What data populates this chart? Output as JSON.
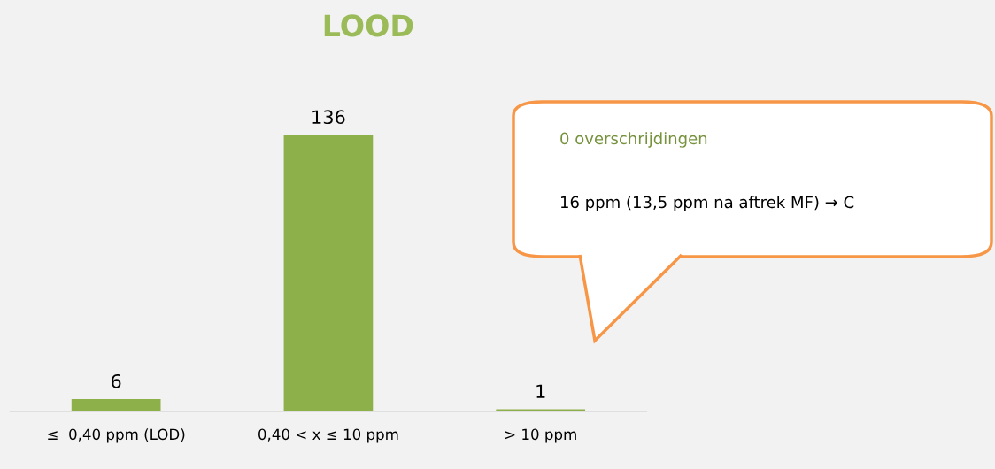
{
  "chart_data": {
    "type": "bar",
    "title": "LOOD",
    "categories": [
      "≤  0,40 ppm (LOD)",
      "0,40 < x ≤ 10 ppm",
      "> 10 ppm"
    ],
    "values": [
      6,
      136,
      1
    ],
    "color": "#8db04a",
    "data_labels": true,
    "grid": false,
    "legend": false,
    "annotations": [
      "0 overschrijdingen",
      "16 ppm (13,5 ppm na aftrek MF) → C"
    ]
  }
}
